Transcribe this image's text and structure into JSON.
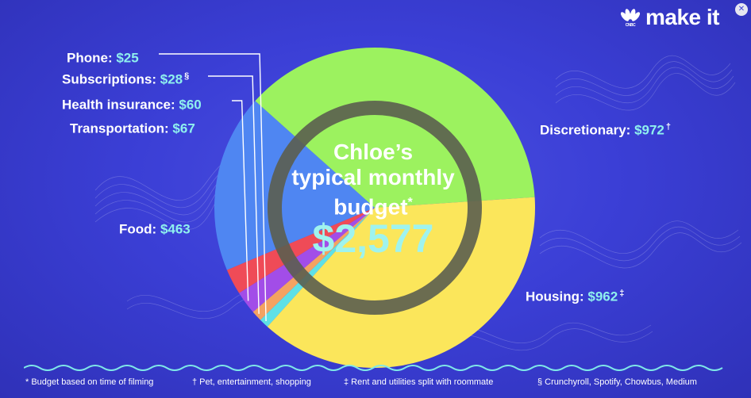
{
  "brand": {
    "logo_text": "make it",
    "network_text": "CNBC"
  },
  "chart_data": {
    "type": "pie",
    "title_lines": [
      "Chloe’s",
      "typical monthly",
      "budget"
    ],
    "title_mark": "*",
    "total": "$2,577",
    "slices": [
      {
        "name": "Phone",
        "value": 25,
        "display": "$25",
        "mark": "",
        "color": "#5ee0e6"
      },
      {
        "name": "Subscriptions",
        "value": 28,
        "display": "$28",
        "mark": "§",
        "color": "#f4a261"
      },
      {
        "name": "Health insurance",
        "value": 60,
        "display": "$60",
        "mark": "",
        "color": "#a24de8"
      },
      {
        "name": "Transportation",
        "value": 67,
        "display": "$67",
        "mark": "",
        "color": "#ef4b57"
      },
      {
        "name": "Food",
        "value": 463,
        "display": "$463",
        "mark": "",
        "color": "#4f86f2"
      },
      {
        "name": "Housing",
        "value": 962,
        "display": "$962",
        "mark": "‡",
        "color": "#9cf25f"
      },
      {
        "name": "Discretionary",
        "value": 972,
        "display": "$972",
        "mark": "†",
        "color": "#fbe65b"
      }
    ],
    "legend": "none"
  },
  "footnotes": [
    "* Budget based on time of filming",
    "† Pet, entertainment, shopping",
    "‡ Rent and utilities split with roommate",
    "§ Crunchyroll, Spotify, Chowbus, Medium"
  ]
}
